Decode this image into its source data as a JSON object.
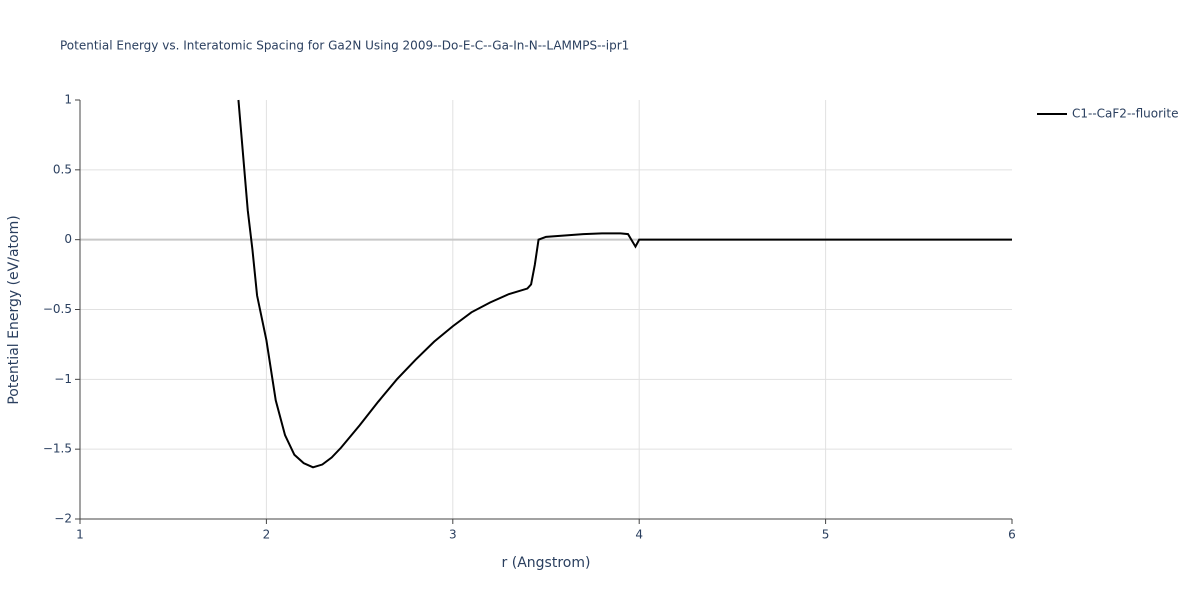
{
  "chart_data": {
    "type": "line",
    "title": "Potential Energy vs. Interatomic Spacing for Ga2N Using 2009--Do-E-C--Ga-In-N--LAMMPS--ipr1",
    "x_label": "r (Angstrom)",
    "y_label": "Potential Energy (eV/atom)",
    "x": [
      1.85,
      1.9,
      1.925,
      1.95,
      2.0,
      2.05,
      2.1,
      2.15,
      2.2,
      2.25,
      2.3,
      2.35,
      2.4,
      2.5,
      2.6,
      2.7,
      2.8,
      2.9,
      3.0,
      3.1,
      3.2,
      3.3,
      3.4,
      3.42,
      3.44,
      3.46,
      3.5,
      3.6,
      3.7,
      3.8,
      3.9,
      3.94,
      3.98,
      4.0,
      4.5,
      5.0,
      5.5,
      6.0
    ],
    "series": [
      {
        "name": "C1--CaF2--fluorite",
        "color": "#000000",
        "values": [
          1.0,
          0.21,
          -0.07,
          -0.4,
          -0.72,
          -1.15,
          -1.4,
          -1.54,
          -1.6,
          -1.63,
          -1.61,
          -1.56,
          -1.49,
          -1.33,
          -1.16,
          -1.0,
          -0.86,
          -0.73,
          -0.62,
          -0.52,
          -0.45,
          -0.39,
          -0.35,
          -0.32,
          -0.18,
          0.0,
          0.02,
          0.03,
          0.04,
          0.045,
          0.045,
          0.04,
          -0.05,
          0.0,
          0.0,
          0.0,
          0.0,
          0.0
        ]
      }
    ],
    "xlim": [
      1,
      6
    ],
    "xticks": [
      1,
      2,
      3,
      4,
      5,
      6
    ],
    "ylim": [
      -2,
      1
    ],
    "yticks": [
      {
        "value": -2,
        "label": "−2"
      },
      {
        "value": -1.5,
        "label": "−1.5"
      },
      {
        "value": -1,
        "label": "−1"
      },
      {
        "value": -0.5,
        "label": "−0.5"
      },
      0,
      0.5,
      1
    ],
    "grid": true
  }
}
